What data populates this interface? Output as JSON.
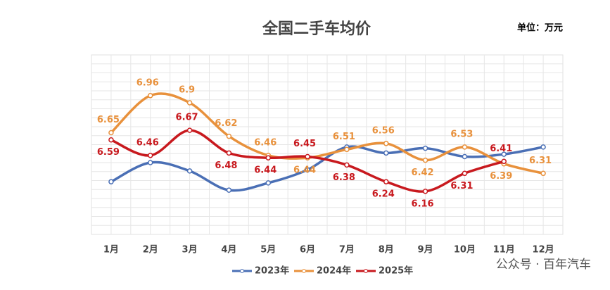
{
  "chart_data": {
    "type": "line",
    "title": "全国二手车均价",
    "unit": "单位：万元",
    "categories": [
      "1月",
      "2月",
      "3月",
      "4月",
      "5月",
      "6月",
      "7月",
      "8月",
      "9月",
      "10月",
      "11月",
      "12月"
    ],
    "series": [
      {
        "name": "2023年",
        "color": "#4a6fb5",
        "values": [
          6.24,
          6.4,
          6.33,
          6.17,
          6.23,
          6.34,
          6.53,
          6.48,
          6.52,
          6.45,
          6.47,
          6.53
        ]
      },
      {
        "name": "2024年",
        "color": "#e8913c",
        "values": [
          6.65,
          6.96,
          6.9,
          6.62,
          6.46,
          6.44,
          6.51,
          6.56,
          6.42,
          6.53,
          6.39,
          6.31
        ],
        "show_labels": true
      },
      {
        "name": "2025年",
        "color": "#c8191e",
        "values": [
          6.59,
          6.46,
          6.67,
          6.48,
          6.44,
          6.45,
          6.38,
          6.24,
          6.16,
          6.31,
          6.41,
          null
        ],
        "show_labels": true
      }
    ],
    "ylim": [
      5.8,
      7.3
    ],
    "watermark": "公众号 · 百年汽车"
  }
}
